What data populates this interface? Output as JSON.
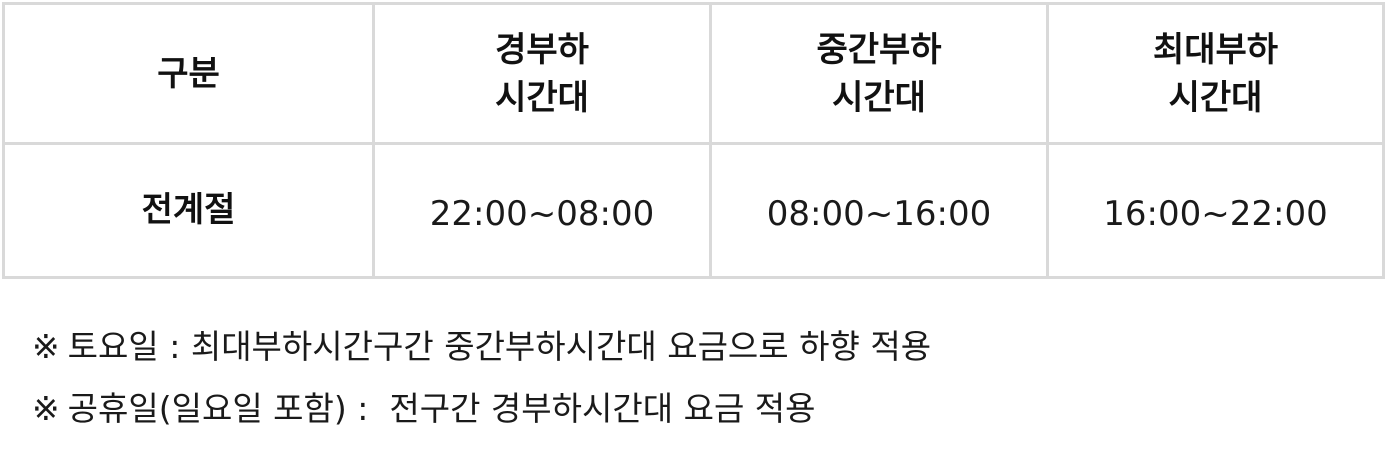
{
  "table": {
    "headers": [
      {
        "lines": [
          "구분"
        ]
      },
      {
        "lines": [
          "경부하",
          "시간대"
        ]
      },
      {
        "lines": [
          "중간부하",
          "시간대"
        ]
      },
      {
        "lines": [
          "최대부하",
          "시간대"
        ]
      }
    ],
    "rows": [
      {
        "season": "전계절",
        "times": [
          "22:00~08:00",
          "08:00~16:00",
          "16:00~22:00"
        ]
      }
    ]
  },
  "notes": [
    {
      "mark": "※",
      "text": "토요일 : 최대부하시간구간 중간부하시간대 요금으로 하향 적용"
    },
    {
      "mark": "※",
      "text": "공휴일(일요일 포함) :  전구간 경부하시간대 요금 적용"
    }
  ]
}
